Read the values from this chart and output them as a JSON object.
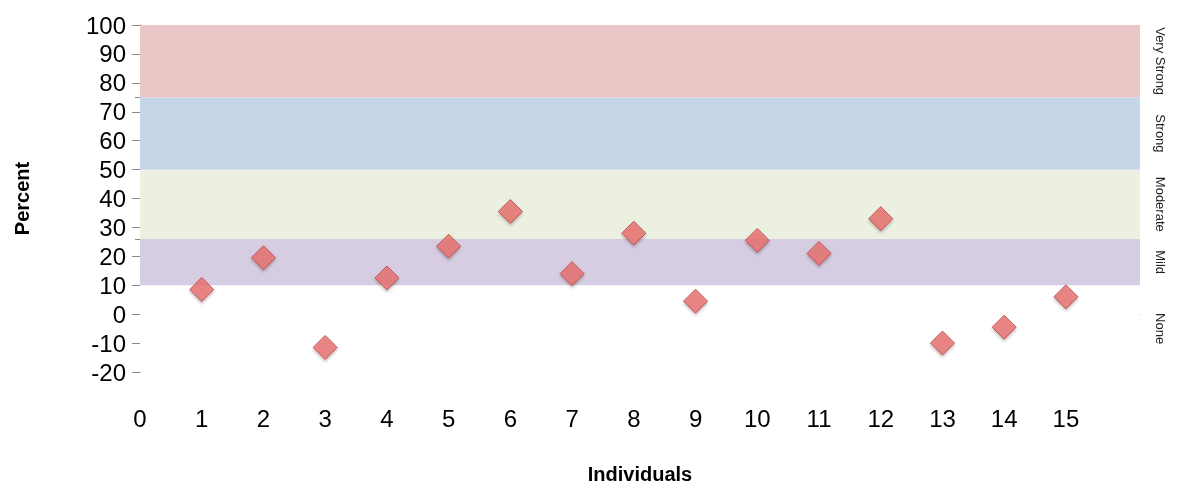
{
  "chart_data": {
    "type": "scatter",
    "xlabel": "Individuals",
    "ylabel": "Percent",
    "x": [
      1,
      2,
      3,
      4,
      5,
      6,
      7,
      8,
      9,
      10,
      11,
      12,
      13,
      14,
      15
    ],
    "series": [
      {
        "color": "#e8716e",
        "values": [
          8.5,
          19.5,
          -11.5,
          12.5,
          23.5,
          35.5,
          14,
          28,
          4.5,
          25.5,
          21,
          33,
          -10,
          -4.5,
          6
        ]
      }
    ],
    "xlim": [
      0,
      16.2
    ],
    "xticks": [
      0,
      1,
      2,
      3,
      4,
      5,
      6,
      7,
      8,
      9,
      10,
      11,
      12,
      13,
      14,
      15
    ],
    "ylim": [
      -20,
      100
    ],
    "yticks": [
      -20,
      -10,
      0,
      10,
      20,
      30,
      40,
      50,
      60,
      70,
      80,
      90,
      100
    ],
    "bands": [
      {
        "axis": "y",
        "from": -20,
        "to": 10,
        "label": "None",
        "color": "#ffffff"
      },
      {
        "axis": "y",
        "from": 10,
        "to": 26,
        "label": "Mild",
        "color": "#d6cde3"
      },
      {
        "axis": "y",
        "from": 26,
        "to": 50,
        "label": "Moderate",
        "color": "#ecf0e1"
      },
      {
        "axis": "y",
        "from": 50,
        "to": 75,
        "label": "Strong",
        "color": "#c6d6e9"
      },
      {
        "axis": "y",
        "from": 75,
        "to": 100,
        "label": "Very Strong",
        "color": "#ebc6c6"
      }
    ],
    "marker": "diamond"
  }
}
